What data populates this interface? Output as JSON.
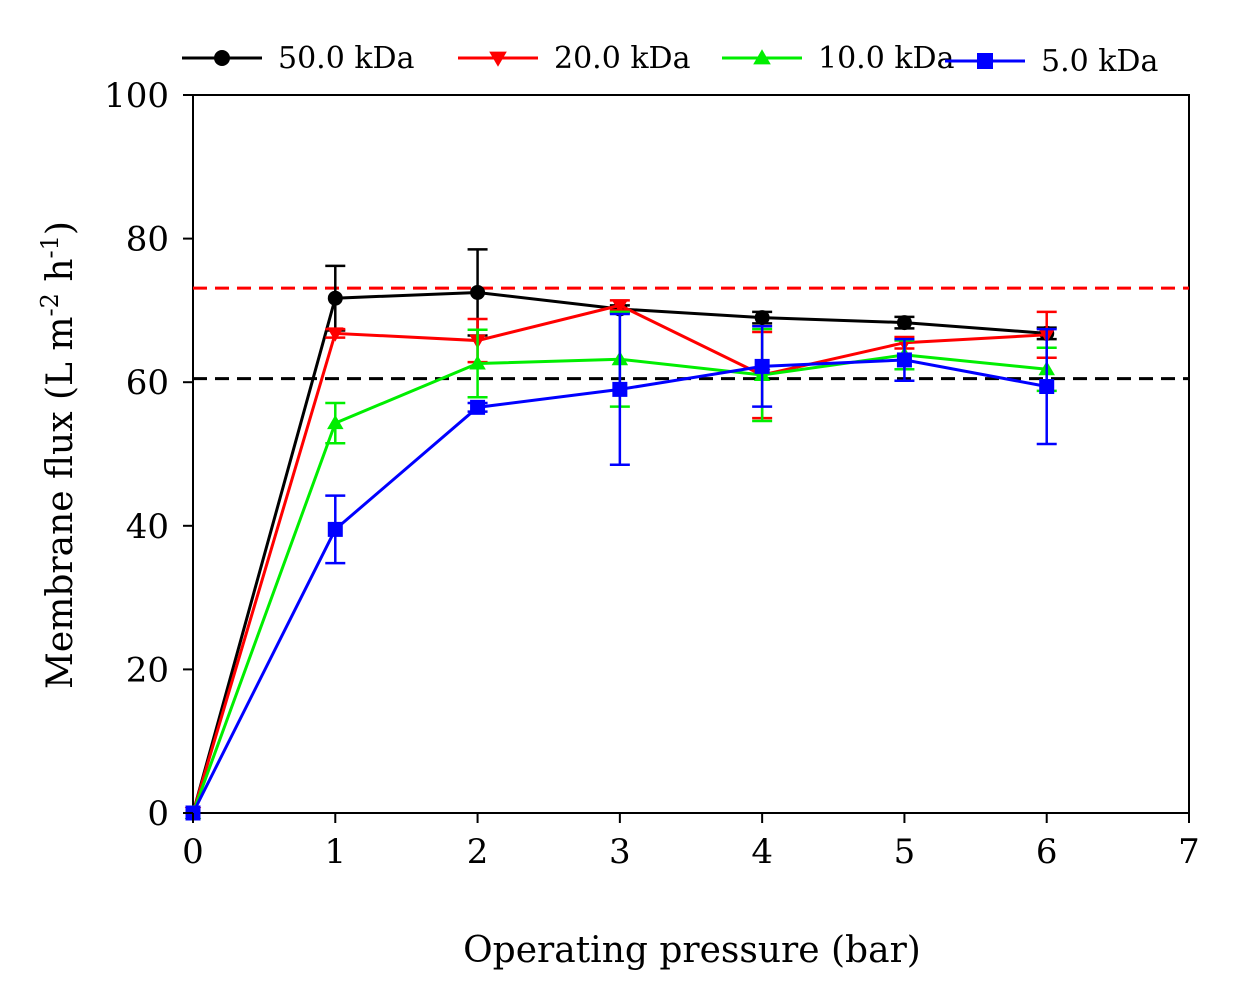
{
  "chart_data": {
    "type": "line",
    "xlabel": "Operating pressure (bar)",
    "ylabel_main": "Membrane flux (L m",
    "ylabel_sup1": "-2",
    "ylabel_mid": " h",
    "ylabel_sup2": "-1",
    "ylabel_end": ")",
    "xlim": [
      0,
      7
    ],
    "ylim": [
      0,
      100
    ],
    "xticks": [
      0,
      1,
      2,
      3,
      4,
      5,
      6,
      7
    ],
    "yticks": [
      0,
      20,
      40,
      60,
      80,
      100
    ],
    "legend_position": "top",
    "series": [
      {
        "name": "50.0 kDa",
        "color": "#000000",
        "marker": "circle",
        "x": [
          0,
          1,
          2,
          3,
          4,
          5,
          6
        ],
        "y": [
          0,
          71.7,
          72.5,
          70.2,
          69.0,
          68.3,
          66.8
        ],
        "err": [
          0,
          4.5,
          6.0,
          0.5,
          0.8,
          0.8,
          0.8
        ]
      },
      {
        "name": "20.0 kDa",
        "color": "#ff0000",
        "marker": "triangle-down",
        "x": [
          0,
          1,
          2,
          3,
          4,
          5,
          6
        ],
        "y": [
          0,
          66.8,
          65.8,
          70.7,
          61.0,
          65.5,
          66.6
        ],
        "err": [
          0,
          0.6,
          3.0,
          0.7,
          6.0,
          0.8,
          3.2
        ]
      },
      {
        "name": "10.0 kDa",
        "color": "#00ee00",
        "marker": "triangle-up",
        "x": [
          0,
          1,
          2,
          3,
          4,
          5,
          6
        ],
        "y": [
          0,
          54.3,
          62.6,
          63.2,
          61.0,
          63.8,
          61.8
        ],
        "err": [
          0,
          2.8,
          4.7,
          6.6,
          6.4,
          2.0,
          3.0
        ]
      },
      {
        "name": "5.0 kDa",
        "color": "#0000ff",
        "marker": "square",
        "x": [
          0,
          1,
          2,
          3,
          4,
          5,
          6
        ],
        "y": [
          0,
          39.5,
          56.5,
          59.0,
          62.2,
          63.1,
          59.4
        ],
        "err": [
          0,
          4.7,
          0.6,
          10.5,
          5.6,
          2.9,
          8.0
        ]
      }
    ],
    "reference_lines": [
      {
        "y": 73.1,
        "color": "#ff0000",
        "style": "dashed"
      },
      {
        "y": 60.5,
        "color": "#000000",
        "style": "dashed"
      }
    ]
  }
}
